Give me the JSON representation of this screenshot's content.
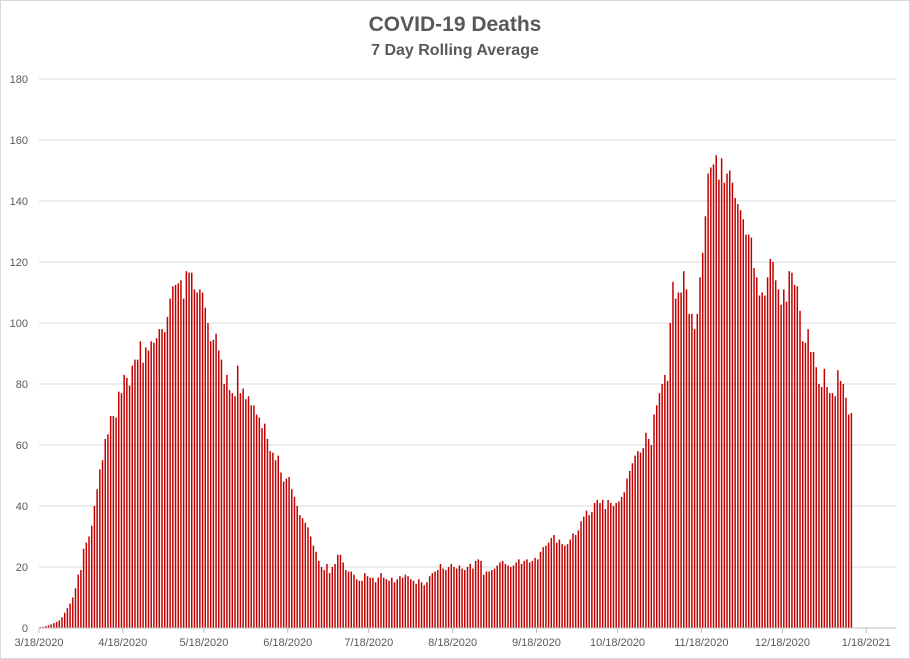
{
  "chart_data": {
    "type": "bar",
    "title": "COVID-19 Deaths",
    "subtitle": "7 Day Rolling Average",
    "xlabel": "",
    "ylabel": "",
    "ylim": [
      0,
      180
    ],
    "y_ticks": [
      0,
      20,
      40,
      60,
      80,
      100,
      120,
      140,
      160,
      180
    ],
    "grid": true,
    "legend": "none",
    "bar_color": "#c00000",
    "x_start": "3/18/2020",
    "x_end": "1/28/2021",
    "x_tick_labels": [
      "3/18/2020",
      "4/18/2020",
      "5/18/2020",
      "6/18/2020",
      "7/18/2020",
      "8/18/2020",
      "9/18/2020",
      "10/18/2020",
      "11/18/2020",
      "12/18/2020",
      "1/18/2021"
    ],
    "values": [
      0.3,
      0.4,
      0.6,
      0.9,
      1.2,
      1.6,
      2.0,
      2.5,
      3.5,
      5.0,
      6.5,
      8.0,
      10.0,
      13.0,
      17.5,
      19.0,
      26.0,
      28.0,
      30.0,
      33.5,
      40.0,
      45.5,
      52.0,
      55.0,
      62.0,
      63.5,
      69.5,
      69.5,
      69.0,
      77.5,
      77.0,
      83.0,
      82.0,
      79.5,
      86.0,
      88.0,
      88.0,
      94.0,
      87.0,
      92.0,
      91.0,
      94.0,
      93.5,
      95.0,
      98.0,
      98.0,
      97.0,
      102.0,
      108.0,
      112.0,
      112.5,
      113.0,
      114.0,
      108.0,
      117.0,
      116.5,
      116.5,
      111.0,
      110.0,
      111.0,
      110.0,
      105.0,
      100.0,
      94.0,
      94.5,
      96.5,
      91.0,
      88.0,
      80.0,
      83.0,
      78.0,
      77.0,
      76.0,
      86.0,
      77.0,
      78.5,
      75.0,
      76.0,
      73.0,
      73.0,
      70.0,
      69.0,
      65.5,
      67.0,
      62.0,
      58.0,
      57.5,
      55.0,
      56.5,
      51.0,
      48.0,
      49.0,
      49.5,
      45.5,
      43.0,
      40.0,
      37.0,
      36.0,
      34.5,
      33.0,
      30.0,
      27.0,
      25.0,
      22.0,
      20.0,
      19.0,
      21.0,
      18.0,
      20.0,
      21.0,
      24.0,
      24.0,
      21.5,
      19.0,
      18.5,
      18.5,
      17.5,
      16.0,
      15.5,
      15.5,
      18.0,
      17.0,
      16.5,
      16.5,
      15.0,
      16.5,
      18.0,
      16.5,
      16.0,
      15.5,
      16.5,
      15.0,
      16.0,
      17.0,
      16.5,
      17.5,
      17.0,
      16.0,
      15.5,
      14.5,
      16.0,
      15.0,
      14.0,
      15.0,
      17.0,
      18.0,
      18.5,
      19.0,
      21.0,
      19.5,
      19.0,
      20.0,
      21.0,
      20.0,
      19.5,
      20.5,
      19.5,
      19.0,
      20.0,
      21.0,
      19.5,
      22.0,
      22.5,
      22.0,
      17.5,
      18.5,
      18.5,
      19.0,
      19.5,
      20.5,
      21.5,
      22.0,
      21.0,
      20.5,
      20.0,
      20.5,
      21.5,
      22.5,
      21.0,
      22.0,
      22.5,
      21.5,
      22.0,
      23.0,
      22.5,
      25.0,
      26.5,
      27.0,
      28.0,
      29.5,
      30.5,
      28.0,
      29.0,
      27.5,
      27.0,
      27.5,
      29.0,
      31.0,
      30.5,
      32.0,
      35.0,
      36.5,
      38.5,
      37.0,
      38.0,
      41.0,
      42.0,
      41.0,
      42.0,
      39.0,
      42.0,
      41.0,
      40.0,
      41.0,
      41.5,
      43.0,
      44.5,
      49.0,
      51.5,
      54.0,
      56.5,
      58.0,
      57.5,
      59.0,
      64.0,
      62.0,
      60.0,
      70.0,
      73.0,
      77.0,
      80.0,
      83.0,
      81.0,
      100.0,
      113.5,
      108.0,
      110.0,
      110.0,
      117.0,
      111.0,
      103.0,
      103.0,
      98.0,
      103.0,
      115.0,
      123.0,
      135.0,
      149.0,
      151.0,
      152.0,
      155.0,
      147.0,
      154.0,
      146.0,
      149.0,
      150.0,
      146.0,
      141.0,
      139.0,
      137.0,
      134.0,
      129.0,
      129.0,
      128.0,
      118.0,
      115.0,
      109.0,
      110.0,
      109.0,
      115.0,
      121.0,
      120.0,
      114.0,
      111.0,
      106.0,
      111.0,
      107.0,
      117.0,
      116.5,
      112.5,
      112.0,
      104.0,
      94.0,
      93.5,
      98.0,
      90.5,
      90.5,
      85.5,
      80.0,
      79.0,
      85.0,
      79.0,
      77.0,
      77.0,
      76.0,
      84.5,
      81.0,
      80.0,
      75.5,
      70.0,
      70.5
    ]
  }
}
